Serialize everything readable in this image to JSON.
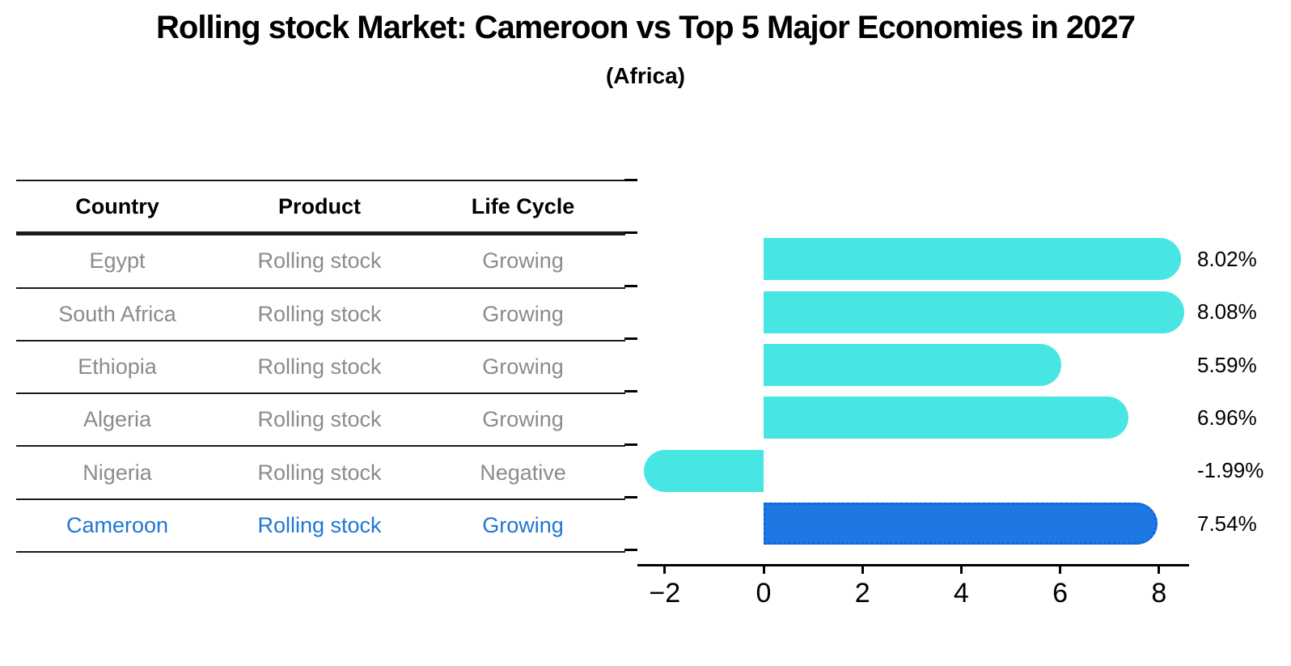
{
  "header": {
    "title": "Rolling stock Market: Cameroon vs Top 5 Major Economies in 2027",
    "subtitle": "(Africa)"
  },
  "table": {
    "headers": [
      "Country",
      "Product",
      "Life Cycle"
    ],
    "rows": [
      {
        "country": "Egypt",
        "product": "Rolling stock",
        "life_cycle": "Growing",
        "highlight": false
      },
      {
        "country": "South Africa",
        "product": "Rolling stock",
        "life_cycle": "Growing",
        "highlight": false
      },
      {
        "country": "Ethiopia",
        "product": "Rolling stock",
        "life_cycle": "Growing",
        "highlight": false
      },
      {
        "country": "Algeria",
        "product": "Rolling stock",
        "life_cycle": "Growing",
        "highlight": false
      },
      {
        "country": "Nigeria",
        "product": "Rolling stock",
        "life_cycle": "Negative",
        "highlight": false
      },
      {
        "country": "Cameroon",
        "product": "Rolling stock",
        "life_cycle": "Growing",
        "highlight": true
      }
    ]
  },
  "chart_data": {
    "type": "bar",
    "orientation": "horizontal",
    "title": "Rolling stock Market: Cameroon vs Top 5 Major Economies in 2027",
    "subtitle": "(Africa)",
    "categories": [
      "Egypt",
      "South Africa",
      "Ethiopia",
      "Algeria",
      "Nigeria",
      "Cameroon"
    ],
    "values": [
      8.02,
      8.08,
      5.59,
      6.96,
      -1.99,
      7.54
    ],
    "value_labels": [
      "8.02%",
      "8.08%",
      "5.59%",
      "6.96%",
      "-1.99%",
      "7.54%"
    ],
    "highlight_category": "Cameroon",
    "x_tick_values": [
      -2,
      0,
      2,
      4,
      6,
      8
    ],
    "x_tick_labels": [
      "−2",
      "0",
      "2",
      "4",
      "6",
      "8"
    ],
    "xlim": [
      -2.55,
      8.6
    ],
    "grid": false,
    "legend": false,
    "colors": {
      "bar": "#47e6e2",
      "highlight_bar": "#1e78e4",
      "highlight_border": "#1062d8",
      "highlight_text": "#1f76d3",
      "row_text": "#8b8b8b",
      "axis": "#000000",
      "background": "#ffffff"
    }
  }
}
